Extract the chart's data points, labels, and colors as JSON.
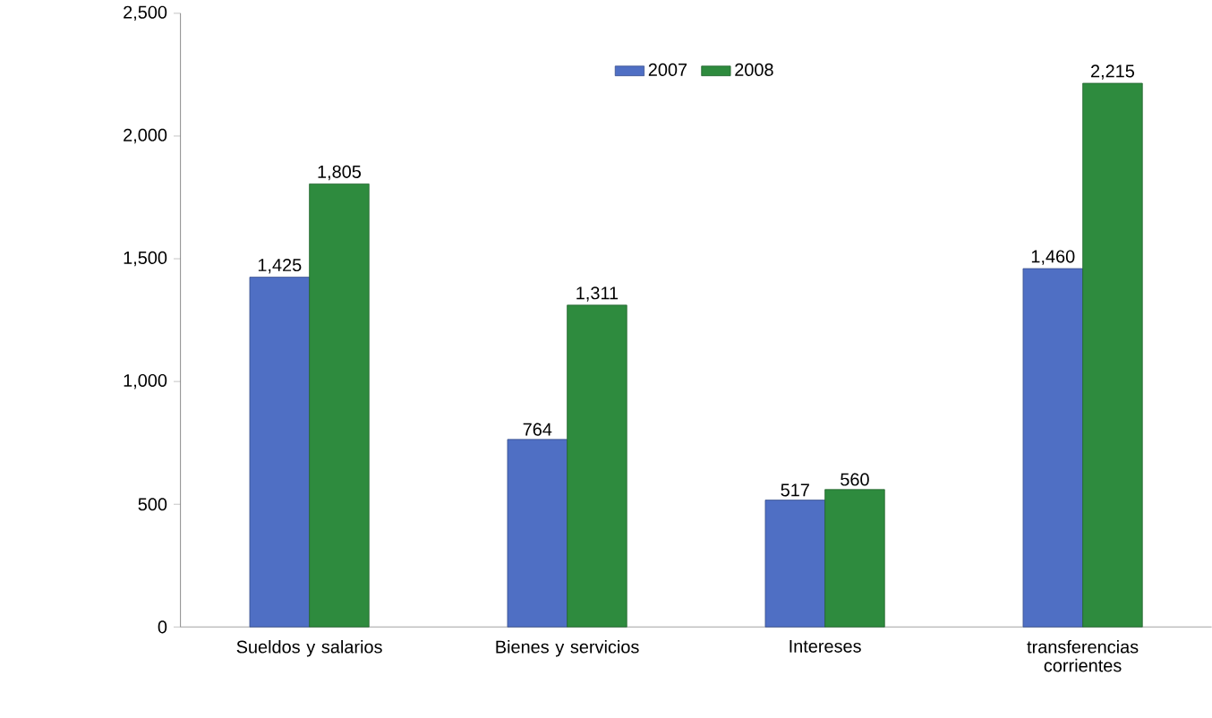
{
  "chart_data": {
    "type": "bar",
    "categories": [
      "Sueldos y salarios",
      "Bienes y servicios",
      "Intereses",
      "transferencias corrientes"
    ],
    "series": [
      {
        "name": "2007",
        "color": "#4f6fc4",
        "values": [
          1425,
          764,
          517,
          1460
        ],
        "value_labels": [
          "1,425",
          "764",
          "517",
          "1,460"
        ]
      },
      {
        "name": "2008",
        "color": "#2e8b3e",
        "values": [
          1805,
          1311,
          560,
          2215
        ],
        "value_labels": [
          "1,805",
          "1,311",
          "560",
          "2,215"
        ]
      }
    ],
    "ylim": [
      0,
      2500
    ],
    "yticks": [
      {
        "value": 0,
        "label": "0"
      },
      {
        "value": 500,
        "label": "500"
      },
      {
        "value": 1000,
        "label": "1,000"
      },
      {
        "value": 1500,
        "label": "1,500"
      },
      {
        "value": 2000,
        "label": "2,000"
      },
      {
        "value": 2500,
        "label": "2,500"
      }
    ],
    "legend": "top",
    "grid": false
  }
}
